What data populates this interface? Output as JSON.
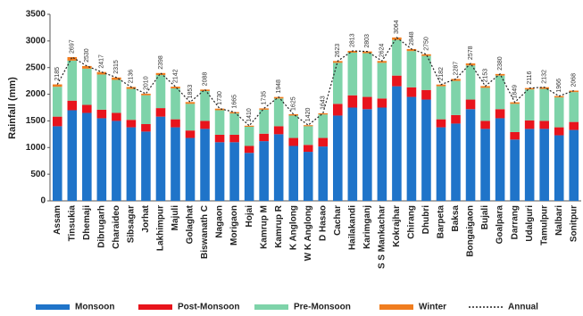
{
  "chart_data": {
    "type": "bar",
    "stacked": true,
    "y_label": "Rainfall (mm)",
    "categories": [
      "Assam",
      "Tinsukia",
      "Dhemaji",
      "Dibrugarh",
      "Charaideo",
      "Sibsagar",
      "Jorhat",
      "Lakhimpur",
      "Majuli",
      "Golaghat",
      "Biswanath C",
      "Nagaon",
      "Morigaon",
      "Hojai",
      "Kamrup M",
      "Kamrup R",
      "K Anglong",
      "W K Anglong",
      "D Hasao",
      "Cachar",
      "Hailakandi",
      "Karimganj",
      "S S Mankachar",
      "Kokrajhar",
      "Chirang",
      "Dhubri",
      "Barpeta",
      "Baksa",
      "Bongaigaon",
      "Bujali",
      "Goalpara",
      "Darrang",
      "Udalguri",
      "Tamulpur",
      "Nalbari",
      "Sonitpur"
    ],
    "series": [
      {
        "name": "Monsoon",
        "color": "#1f74c9",
        "values": [
          1400,
          1700,
          1650,
          1550,
          1500,
          1380,
          1300,
          1580,
          1380,
          1180,
          1350,
          1100,
          1100,
          900,
          1120,
          1250,
          1030,
          920,
          1020,
          1600,
          1750,
          1720,
          1750,
          2150,
          1950,
          1900,
          1380,
          1450,
          1720,
          1350,
          1550,
          1150,
          1350,
          1350,
          1230,
          1330
        ]
      },
      {
        "name": "Post-Monsoon",
        "color": "#e8141c",
        "values": [
          180,
          180,
          150,
          160,
          150,
          140,
          140,
          160,
          150,
          140,
          150,
          140,
          140,
          130,
          140,
          150,
          150,
          130,
          160,
          220,
          230,
          230,
          170,
          200,
          180,
          180,
          150,
          160,
          180,
          150,
          170,
          140,
          160,
          150,
          150,
          150
        ]
      },
      {
        "name": "Pre-Monsoon",
        "color": "#7ed3a9",
        "values": [
          560,
          750,
          680,
          660,
          620,
          580,
          540,
          620,
          580,
          500,
          560,
          460,
          400,
          360,
          450,
          520,
          420,
          350,
          440,
          770,
          800,
          820,
          670,
          670,
          680,
          640,
          620,
          640,
          640,
          620,
          630,
          530,
          580,
          600,
          560,
          560
        ]
      },
      {
        "name": "Winter",
        "color": "#f07d1f",
        "values": [
          45,
          67,
          50,
          47,
          45,
          36,
          30,
          38,
          32,
          33,
          28,
          30,
          25,
          20,
          25,
          28,
          25,
          20,
          23,
          33,
          33,
          33,
          34,
          44,
          38,
          30,
          32,
          37,
          38,
          33,
          30,
          29,
          26,
          32,
          26,
          28
        ]
      },
      {
        "name": "Annual",
        "type": "line",
        "color": "#222222",
        "dashed": true,
        "values": [
          2185,
          2697,
          2530,
          2417,
          2315,
          2136,
          2010,
          2398,
          2142,
          1853,
          2088,
          1730,
          1665,
          1410,
          1735,
          1948,
          1625,
          1420,
          1643,
          2623,
          2813,
          2803,
          2624,
          3064,
          2848,
          2750,
          2182,
          2287,
          2578,
          2153,
          2380,
          1849,
          2116,
          2132,
          1966,
          2068
        ]
      }
    ],
    "ylim": [
      0,
      3500
    ],
    "yticks": [
      0,
      500,
      1000,
      1500,
      2000,
      2500,
      3000,
      3500
    ],
    "legend": "bottom"
  }
}
